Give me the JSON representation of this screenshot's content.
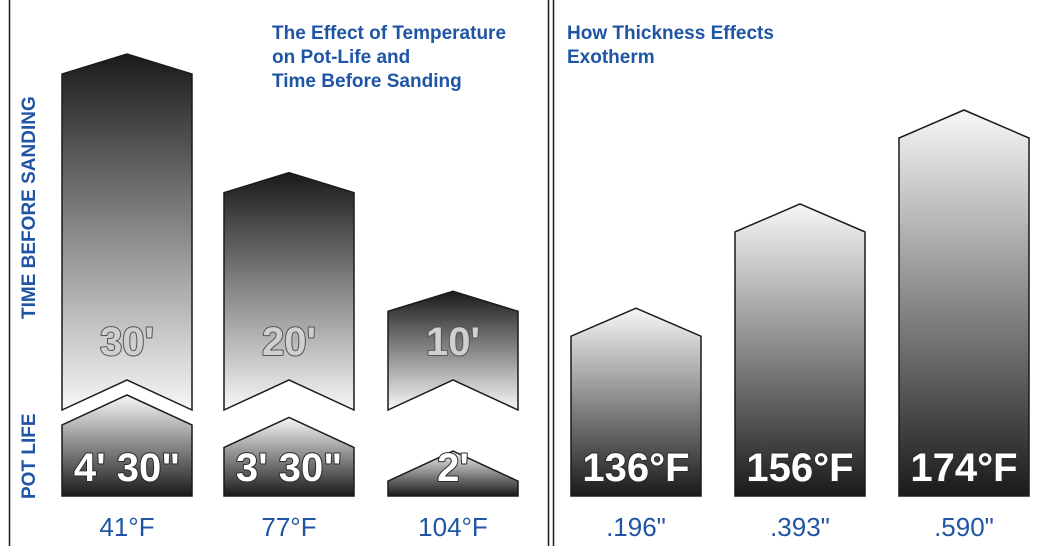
{
  "chart_data": [
    {
      "type": "bar",
      "title_lines": [
        "The Effect of Temperature",
        "on Pot-Life and",
        "Time Before Sanding"
      ],
      "ylabel_top": "TIME BEFORE SANDING",
      "ylabel_bottom": "POT LIFE",
      "categories": [
        "41°F",
        "77°F",
        "104°F"
      ],
      "series": [
        {
          "name": "TIME BEFORE SANDING",
          "values": [
            30,
            20,
            10
          ],
          "labels": [
            "30'",
            "20'",
            "10'"
          ]
        },
        {
          "name": "POT LIFE",
          "values": [
            4.5,
            3.5,
            2
          ],
          "labels": [
            "4' 30\"",
            "3' 30\"",
            "2'"
          ]
        }
      ],
      "top_max": 30,
      "bottom_max": 4.5
    },
    {
      "type": "bar",
      "title_lines": [
        "How Thickness Effects",
        "Exotherm"
      ],
      "categories": [
        ".196\"",
        ".393\"",
        ".590\""
      ],
      "values": [
        136,
        156,
        174
      ],
      "labels": [
        "136°F",
        "156°F",
        "174°F"
      ],
      "ylim": [
        100,
        174
      ]
    }
  ],
  "colors": {
    "title": "#1f55a4",
    "category": "#1f55a4",
    "bar_dark": "#1a1a1a",
    "bar_light": "#f7f7f7"
  }
}
